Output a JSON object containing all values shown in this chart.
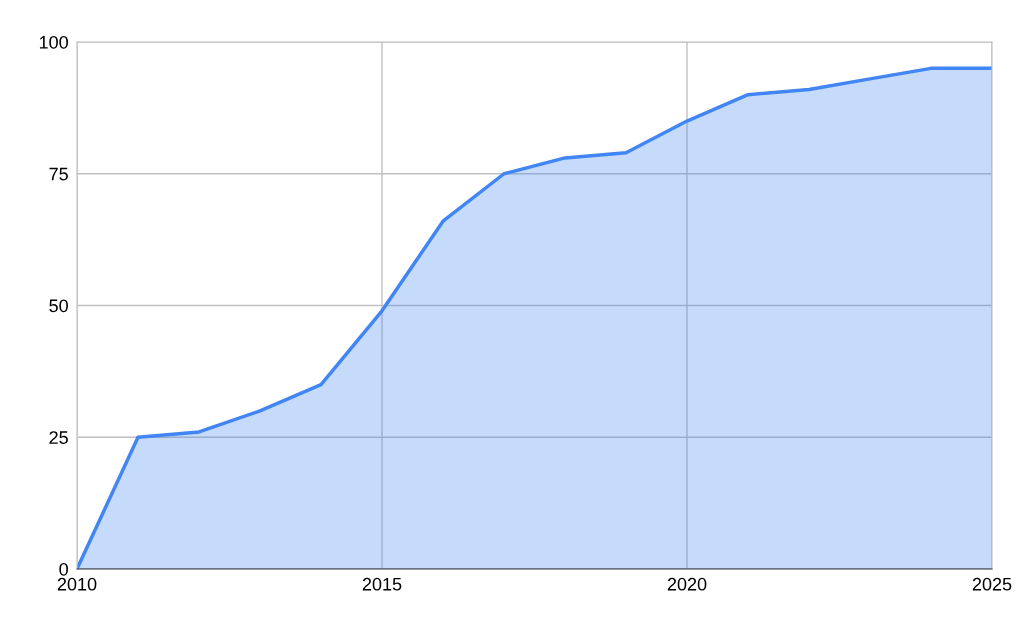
{
  "chart_data": {
    "type": "area",
    "x": [
      2010,
      2011,
      2012,
      2013,
      2014,
      2015,
      2016,
      2017,
      2018,
      2019,
      2020,
      2021,
      2022,
      2023,
      2024,
      2025
    ],
    "series": [
      {
        "color": "#4285f4",
        "values": [
          0,
          25,
          26,
          30,
          35,
          49,
          66,
          75,
          78,
          79,
          85,
          90,
          91,
          93,
          95,
          95
        ]
      }
    ],
    "xlim": [
      2010,
      2025
    ],
    "xticks": [
      2010,
      2015,
      2020,
      2025
    ],
    "ylim": [
      0,
      100
    ],
    "yticks": [
      0,
      25,
      50,
      75,
      100
    ],
    "grid": true,
    "legend": false,
    "marker": "none",
    "line_style": "solid"
  }
}
